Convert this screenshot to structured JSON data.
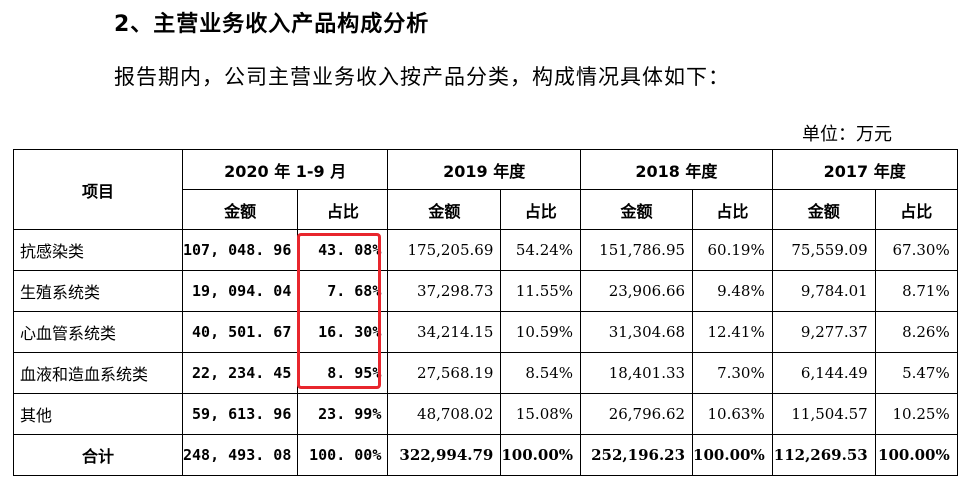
{
  "heading": "2、主营业务收入产品构成分析",
  "intro": "报告期内，公司主营业务收入按产品分类，构成情况具体如下：",
  "unit": "单位：万元",
  "table": {
    "item_header": "项目",
    "periods": [
      "2020 年 1-9 月",
      "2019 年度",
      "2018 年度",
      "2017 年度"
    ],
    "amount_label": "金额",
    "ratio_label": "占比",
    "rows": [
      {
        "label": "抗感染类",
        "cells": [
          "107, 048. 96",
          "43. 08%",
          "175,205.69",
          "54.24%",
          "151,786.95",
          "60.19%",
          "75,559.09",
          "67.30%"
        ]
      },
      {
        "label": "生殖系统类",
        "cells": [
          "19, 094. 04",
          "7. 68%",
          "37,298.73",
          "11.55%",
          "23,906.66",
          "9.48%",
          "9,784.01",
          "8.71%"
        ]
      },
      {
        "label": "心血管系统类",
        "cells": [
          "40, 501. 67",
          "16. 30%",
          "34,214.15",
          "10.59%",
          "31,304.68",
          "12.41%",
          "9,277.37",
          "8.26%"
        ]
      },
      {
        "label": "血液和造血系统类",
        "cells": [
          "22, 234. 45",
          "8. 95%",
          "27,568.19",
          "8.54%",
          "18,401.33",
          "7.30%",
          "6,144.49",
          "5.47%"
        ]
      },
      {
        "label": "其他",
        "cells": [
          "59, 613. 96",
          "23. 99%",
          "48,708.02",
          "15.08%",
          "26,796.62",
          "10.63%",
          "11,504.57",
          "10.25%"
        ]
      }
    ],
    "total": {
      "label": "合计",
      "cells": [
        "248, 493. 08",
        "100. 00%",
        "322,994.79",
        "100.00%",
        "252,196.23",
        "100.00%",
        "112,269.53",
        "100.00%"
      ]
    }
  },
  "highlight_color": "#e8262d"
}
